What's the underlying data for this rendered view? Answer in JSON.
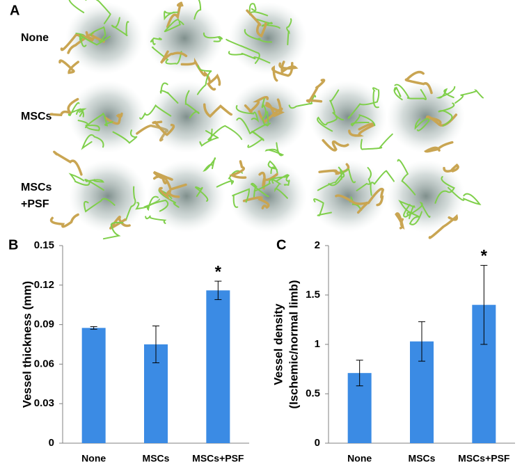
{
  "panel_a": {
    "label": "A",
    "rows": [
      {
        "label_lines": [
          "None"
        ]
      },
      {
        "label_lines": [
          "MSCs"
        ]
      },
      {
        "label_lines": [
          "MSCs",
          "+PSF"
        ]
      }
    ]
  },
  "chart_data": [
    {
      "type": "bar",
      "panel_label": "B",
      "ylabel": [
        "Vessel thickness (mm)"
      ],
      "categories": [
        "None",
        "MSCs",
        "MSCs+PSF"
      ],
      "values": [
        0.0875,
        0.075,
        0.116
      ],
      "errors": [
        0.001,
        0.014,
        0.007
      ],
      "color": "#3b8be4",
      "ylim": [
        0,
        0.15
      ],
      "yticks": [
        0,
        0.03,
        0.06,
        0.09,
        0.12,
        0.15
      ],
      "grid": false,
      "significance_marker": "*"
    },
    {
      "type": "bar",
      "panel_label": "C",
      "ylabel": [
        "Vessel density",
        "(Ischemic/normal limb)"
      ],
      "categories": [
        "None",
        "MSCs",
        "MSCs+PSF"
      ],
      "values": [
        0.71,
        1.03,
        1.4
      ],
      "errors": [
        0.13,
        0.2,
        0.4
      ],
      "color": "#3b8be4",
      "ylim": [
        0,
        2
      ],
      "yticks": [
        0,
        0.5,
        1,
        1.5,
        2
      ],
      "grid": false,
      "significance_marker": "*"
    }
  ]
}
